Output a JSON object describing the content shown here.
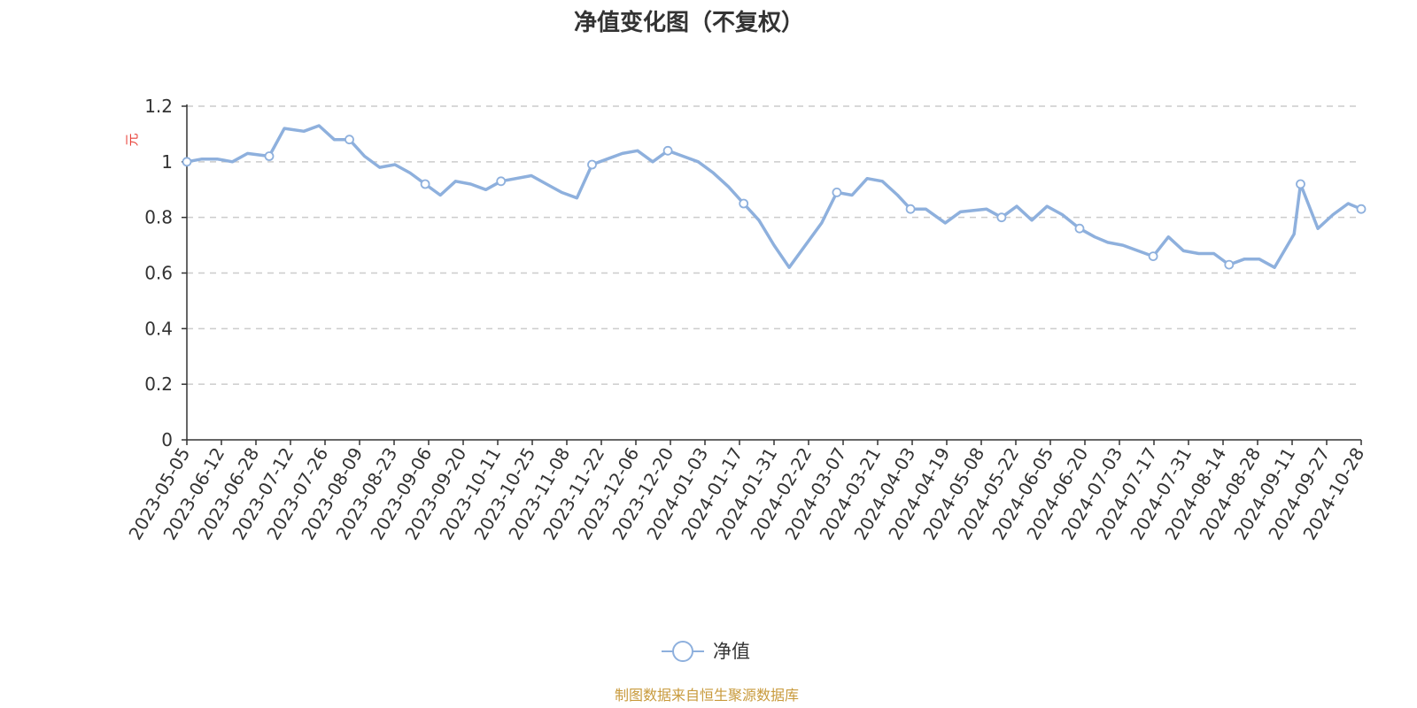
{
  "chart_data": {
    "type": "line",
    "title": "净值变化图（不复权）",
    "ylabel": "元",
    "xlabel": "",
    "ylim": [
      0,
      1.2
    ],
    "y_ticks": [
      0,
      0.2,
      0.4,
      0.6,
      0.8,
      1,
      1.2
    ],
    "y_tick_labels": [
      "0",
      "0.2",
      "0.4",
      "0.6",
      "0.8",
      "1",
      "1.2"
    ],
    "grid": true,
    "legend_position": "bottom-center",
    "x_tick_labels": [
      "2023-05-05",
      "2023-06-12",
      "2023-06-28",
      "2023-07-12",
      "2023-07-26",
      "2023-08-09",
      "2023-08-23",
      "2023-09-06",
      "2023-09-20",
      "2023-10-11",
      "2023-10-25",
      "2023-11-08",
      "2023-11-22",
      "2023-12-06",
      "2023-12-20",
      "2024-01-03",
      "2024-01-17",
      "2024-01-31",
      "2024-02-22",
      "2024-03-07",
      "2024-03-21",
      "2024-04-03",
      "2024-04-19",
      "2024-05-08",
      "2024-05-22",
      "2024-06-05",
      "2024-06-20",
      "2024-07-03",
      "2024-07-17",
      "2024-07-31",
      "2024-08-14",
      "2024-08-28",
      "2024-09-11",
      "2024-09-27",
      "2024-10-28"
    ],
    "series": [
      {
        "name": "净值",
        "color": "#8eb0dd",
        "x": [
          "2023-05-05",
          "2023-05-12",
          "2023-05-19",
          "2023-05-26",
          "2023-06-02",
          "2023-06-12",
          "2023-06-19",
          "2023-06-28",
          "2023-07-05",
          "2023-07-12",
          "2023-07-19",
          "2023-07-26",
          "2023-08-02",
          "2023-08-09",
          "2023-08-16",
          "2023-08-23",
          "2023-08-30",
          "2023-09-06",
          "2023-09-13",
          "2023-09-20",
          "2023-09-27",
          "2023-10-11",
          "2023-10-18",
          "2023-10-25",
          "2023-11-01",
          "2023-11-08",
          "2023-11-15",
          "2023-11-22",
          "2023-11-29",
          "2023-12-06",
          "2023-12-13",
          "2023-12-20",
          "2023-12-27",
          "2024-01-03",
          "2024-01-10",
          "2024-01-17",
          "2024-01-24",
          "2024-01-31",
          "2024-02-07",
          "2024-02-22",
          "2024-02-29",
          "2024-03-07",
          "2024-03-14",
          "2024-03-21",
          "2024-03-28",
          "2024-04-03",
          "2024-04-10",
          "2024-04-19",
          "2024-04-26",
          "2024-05-08",
          "2024-05-15",
          "2024-05-22",
          "2024-05-29",
          "2024-06-05",
          "2024-06-12",
          "2024-06-20",
          "2024-06-27",
          "2024-07-03",
          "2024-07-10",
          "2024-07-17",
          "2024-07-24",
          "2024-07-31",
          "2024-08-07",
          "2024-08-14",
          "2024-08-21",
          "2024-08-28",
          "2024-09-04",
          "2024-09-11",
          "2024-09-18",
          "2024-09-27",
          "2024-09-30",
          "2024-10-08",
          "2024-10-15",
          "2024-10-22",
          "2024-10-28"
        ],
        "values": [
          1.0,
          1.01,
          1.01,
          1.0,
          1.03,
          1.02,
          1.12,
          1.11,
          1.13,
          1.08,
          1.08,
          1.02,
          0.98,
          0.99,
          0.96,
          0.92,
          0.88,
          0.93,
          0.92,
          0.9,
          0.93,
          0.95,
          0.92,
          0.89,
          0.87,
          0.99,
          1.01,
          1.03,
          1.04,
          1.0,
          1.04,
          1.02,
          1.0,
          0.96,
          0.91,
          0.85,
          0.79,
          0.7,
          0.62,
          0.78,
          0.89,
          0.88,
          0.94,
          0.93,
          0.88,
          0.83,
          0.83,
          0.78,
          0.82,
          0.83,
          0.8,
          0.84,
          0.79,
          0.84,
          0.81,
          0.76,
          0.73,
          0.71,
          0.7,
          0.68,
          0.66,
          0.73,
          0.68,
          0.67,
          0.67,
          0.63,
          0.65,
          0.65,
          0.62,
          0.74,
          0.92,
          0.76,
          0.81,
          0.85,
          0.83
        ]
      }
    ]
  },
  "legend": {
    "label": "净值"
  },
  "source_text": "制图数据来自恒生聚源数据库",
  "colors": {
    "line": "#8eb0dd",
    "ylabel": "#e8433b",
    "source": "#c89a3c",
    "grid": "#cccccc",
    "axis": "#333333"
  }
}
